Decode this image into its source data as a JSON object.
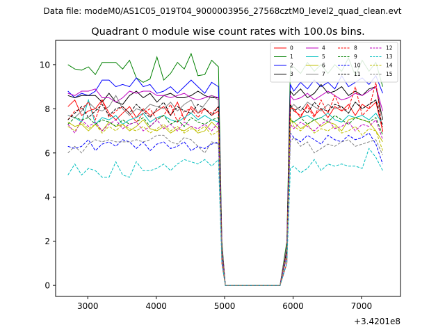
{
  "chart_data": {
    "type": "line",
    "suptitle": "Data file: modeM0/AS1C05_019T04_9000003956_27568cztM0_level2_quad_clean.evt",
    "title": "Quadrant 0 module wise count rates with 100.0s bins.",
    "xlabel": "",
    "ylabel": "",
    "x_offset_label": "+3.4201e8",
    "xlim": [
      2530,
      7570
    ],
    "ylim": [
      -0.5,
      11.1
    ],
    "xticks": [
      3000,
      4000,
      5000,
      6000,
      7000
    ],
    "yticks": [
      0,
      2,
      4,
      6,
      8,
      10
    ],
    "grid": false,
    "legend_position": "top-right",
    "legend_columns": 4,
    "x": [
      2710,
      2810,
      2910,
      3010,
      3110,
      3210,
      3310,
      3410,
      3510,
      3610,
      3710,
      3810,
      3910,
      4010,
      4110,
      4210,
      4310,
      4410,
      4510,
      4610,
      4710,
      4810,
      4910,
      4960,
      5010,
      5110,
      5210,
      5310,
      5410,
      5510,
      5610,
      5710,
      5810,
      5910,
      5960,
      6010,
      6110,
      6210,
      6310,
      6410,
      6510,
      6610,
      6710,
      6810,
      6910,
      7010,
      7110,
      7210,
      7310
    ],
    "series": [
      {
        "name": "0",
        "color": "#ff0000",
        "dash": "solid",
        "values": [
          8.1,
          8.4,
          7.7,
          7.9,
          8.0,
          8.4,
          7.8,
          7.5,
          7.8,
          8.1,
          7.6,
          8.0,
          7.7,
          7.9,
          8.1,
          7.7,
          8.3,
          7.5,
          8.1,
          7.8,
          8.0,
          7.7,
          7.9,
          1.0,
          0.0,
          0,
          0,
          0,
          0,
          0,
          0,
          0,
          0,
          1.0,
          8.0,
          8.0,
          7.6,
          8.2,
          7.7,
          8.0,
          7.6,
          8.1,
          7.9,
          8.2,
          7.7,
          8.2,
          8.0,
          8.3,
          7.0
        ]
      },
      {
        "name": "1",
        "color": "#008000",
        "dash": "solid",
        "values": [
          10.0,
          9.8,
          9.75,
          9.9,
          9.55,
          10.1,
          10.1,
          10.1,
          9.8,
          10.2,
          9.4,
          9.2,
          9.35,
          10.35,
          9.3,
          9.6,
          10.1,
          9.8,
          10.5,
          9.5,
          9.55,
          10.2,
          9.9,
          2.0,
          0.0,
          0,
          0,
          0,
          0,
          0,
          0,
          0,
          0,
          2.0,
          9.9,
          9.9,
          9.6,
          10.1,
          9.7,
          10.0,
          9.6,
          10.0,
          9.7,
          10.3,
          9.5,
          10.2,
          9.7,
          10.1,
          9.0
        ]
      },
      {
        "name": "2",
        "color": "#0000ff",
        "dash": "solid",
        "values": [
          8.8,
          8.5,
          8.7,
          8.6,
          8.8,
          9.3,
          9.3,
          9.0,
          9.1,
          9.0,
          9.4,
          9.0,
          9.1,
          8.7,
          8.8,
          9.0,
          8.7,
          9.0,
          9.3,
          9.0,
          8.7,
          9.2,
          9.0,
          1.8,
          0.0,
          0,
          0,
          0,
          0,
          0,
          0,
          0,
          0,
          1.8,
          9.1,
          8.8,
          9.2,
          8.9,
          9.3,
          9.0,
          9.2,
          8.9,
          9.5,
          9.0,
          9.2,
          9.4,
          9.1,
          9.5,
          8.7
        ]
      },
      {
        "name": "3",
        "color": "#000000",
        "dash": "solid",
        "values": [
          8.6,
          8.5,
          8.6,
          8.6,
          8.6,
          8.3,
          8.7,
          8.3,
          8.2,
          8.6,
          8.8,
          8.5,
          8.7,
          8.3,
          8.6,
          8.7,
          8.5,
          8.5,
          8.6,
          8.8,
          8.6,
          8.5,
          8.5,
          1.8,
          0.0,
          0,
          0,
          0,
          0,
          0,
          0,
          0,
          0,
          1.8,
          8.8,
          8.6,
          8.9,
          8.5,
          8.7,
          9.1,
          8.7,
          8.8,
          9.0,
          8.6,
          8.8,
          8.6,
          8.9,
          9.0,
          7.5
        ]
      },
      {
        "name": "4",
        "color": "#bf00bf",
        "dash": "solid",
        "values": [
          8.7,
          8.6,
          8.8,
          8.8,
          8.9,
          8.5,
          8.5,
          8.3,
          8.5,
          8.8,
          8.7,
          8.8,
          8.8,
          8.6,
          8.6,
          8.5,
          8.6,
          8.7,
          8.5,
          8.4,
          8.5,
          8.6,
          8.5,
          1.8,
          0.0,
          0,
          0,
          0,
          0,
          0,
          0,
          0,
          0,
          1.8,
          8.6,
          8.4,
          8.5,
          8.7,
          8.4,
          8.6,
          8.8,
          8.6,
          8.4,
          8.5,
          8.7,
          8.6,
          8.8,
          9.0,
          7.9
        ]
      },
      {
        "name": "5",
        "color": "#00bfbf",
        "dash": "solid",
        "values": [
          7.7,
          7.6,
          7.4,
          8.4,
          7.3,
          7.6,
          7.5,
          7.7,
          7.3,
          7.5,
          7.6,
          7.8,
          7.4,
          7.6,
          7.7,
          7.5,
          7.4,
          7.6,
          7.8,
          7.5,
          7.7,
          7.5,
          7.4,
          1.5,
          0.0,
          0,
          0,
          0,
          0,
          0,
          0,
          0,
          0,
          1.5,
          7.5,
          7.4,
          7.6,
          7.7,
          7.5,
          7.6,
          7.8,
          7.5,
          7.4,
          7.7,
          7.6,
          7.7,
          7.5,
          7.8,
          7.3
        ]
      },
      {
        "name": "6",
        "color": "#bfbf00",
        "dash": "solid",
        "values": [
          7.4,
          7.2,
          7.3,
          7.0,
          7.3,
          7.0,
          7.4,
          7.2,
          7.3,
          7.0,
          7.2,
          7.5,
          7.1,
          7.0,
          7.2,
          6.9,
          7.1,
          7.0,
          7.2,
          6.9,
          7.0,
          7.4,
          7.1,
          1.5,
          0.0,
          0,
          0,
          0,
          0,
          0,
          0,
          0,
          0,
          1.5,
          7.5,
          7.4,
          7.1,
          7.3,
          7.5,
          7.2,
          7.4,
          7.3,
          7.0,
          7.5,
          7.6,
          7.5,
          7.4,
          7.0,
          6.5
        ]
      },
      {
        "name": "7",
        "color": "#7f7f7f",
        "dash": "solid",
        "values": [
          7.7,
          7.6,
          7.9,
          8.3,
          8.0,
          7.9,
          8.1,
          8.6,
          8.0,
          7.7,
          8.0,
          7.9,
          8.2,
          8.1,
          8.0,
          8.3,
          7.9,
          8.2,
          8.4,
          7.8,
          8.2,
          8.6,
          8.4,
          1.8,
          0.0,
          0,
          0,
          0,
          0,
          0,
          0,
          0,
          0,
          1.8,
          8.0,
          8.2,
          7.9,
          8.3,
          8.1,
          7.9,
          8.2,
          8.0,
          8.1,
          7.8,
          8.3,
          8.0,
          8.2,
          8.4,
          7.6
        ]
      },
      {
        "name": "8",
        "color": "#ff0000",
        "dash": "dashed",
        "values": [
          7.5,
          7.9,
          8.0,
          8.3,
          7.5,
          8.4,
          7.6,
          7.9,
          8.1,
          7.8,
          7.4,
          7.8,
          8.0,
          7.5,
          7.7,
          8.2,
          7.4,
          7.9,
          8.0,
          7.6,
          8.0,
          7.8,
          8.1,
          1.6,
          0.0,
          0,
          0,
          0,
          0,
          0,
          0,
          0,
          0,
          1.6,
          8.2,
          7.9,
          7.7,
          8.1,
          7.6,
          8.4,
          7.8,
          8.6,
          7.9,
          8.0,
          9.0,
          7.7,
          8.0,
          9.2,
          6.9
        ]
      },
      {
        "name": "9",
        "color": "#008000",
        "dash": "dashed",
        "values": [
          7.3,
          7.6,
          7.5,
          7.6,
          7.3,
          7.5,
          7.4,
          7.2,
          7.5,
          7.3,
          7.4,
          7.6,
          7.2,
          7.5,
          7.7,
          7.3,
          7.5,
          7.2,
          7.6,
          7.4,
          7.3,
          7.5,
          7.6,
          1.5,
          0.0,
          0,
          0,
          0,
          0,
          0,
          0,
          0,
          0,
          1.5,
          7.5,
          7.4,
          7.6,
          7.3,
          7.5,
          7.6,
          7.4,
          7.7,
          7.5,
          7.3,
          7.6,
          7.5,
          7.4,
          7.6,
          6.8
        ]
      },
      {
        "name": "10",
        "color": "#0000ff",
        "dash": "dashed",
        "values": [
          6.3,
          6.2,
          6.3,
          6.6,
          6.1,
          6.4,
          6.5,
          6.3,
          6.6,
          6.5,
          6.2,
          6.5,
          6.1,
          6.4,
          6.5,
          6.2,
          6.3,
          6.5,
          6.1,
          6.3,
          6.2,
          6.4,
          6.5,
          1.3,
          0.0,
          0,
          0,
          0,
          0,
          0,
          0,
          0,
          0,
          1.3,
          6.9,
          6.7,
          6.5,
          6.8,
          6.6,
          6.4,
          6.8,
          6.6,
          6.5,
          6.8,
          6.6,
          6.7,
          6.9,
          6.4,
          5.5
        ]
      },
      {
        "name": "11",
        "color": "#000000",
        "dash": "dashed",
        "values": [
          7.5,
          7.8,
          8.1,
          7.6,
          7.9,
          8.2,
          7.7,
          8.0,
          8.1,
          7.8,
          8.2,
          7.9,
          7.6,
          8.0,
          8.3,
          7.7,
          8.1,
          7.9,
          7.8,
          8.2,
          8.0,
          7.7,
          8.1,
          1.6,
          0.0,
          0,
          0,
          0,
          0,
          0,
          0,
          0,
          0,
          1.6,
          8.2,
          7.9,
          8.1,
          7.8,
          8.3,
          8.0,
          7.9,
          8.2,
          8.1,
          7.8,
          8.3,
          8.0,
          8.2,
          8.4,
          7.2
        ]
      },
      {
        "name": "12",
        "color": "#bf00bf",
        "dash": "dashed",
        "values": [
          7.3,
          6.9,
          7.5,
          7.2,
          7.4,
          7.0,
          7.3,
          7.5,
          7.1,
          7.3,
          7.4,
          7.0,
          7.2,
          7.5,
          7.1,
          7.3,
          7.0,
          7.4,
          7.2,
          7.1,
          7.3,
          7.0,
          7.4,
          1.5,
          0.0,
          0,
          0,
          0,
          0,
          0,
          0,
          0,
          0,
          1.5,
          7.3,
          7.1,
          7.4,
          7.2,
          7.0,
          7.3,
          7.5,
          7.1,
          7.2,
          7.4,
          7.0,
          7.3,
          7.2,
          7.5,
          6.6
        ]
      },
      {
        "name": "13",
        "color": "#00bfbf",
        "dash": "dashed",
        "values": [
          5.0,
          5.5,
          5.0,
          5.3,
          5.2,
          4.9,
          4.9,
          5.6,
          5.0,
          4.9,
          5.6,
          5.2,
          5.2,
          5.3,
          5.5,
          5.2,
          5.5,
          5.7,
          5.6,
          5.5,
          5.7,
          5.4,
          5.7,
          1.0,
          0.0,
          0,
          0,
          0,
          0,
          0,
          0,
          0,
          0,
          1.0,
          5.3,
          5.4,
          5.1,
          5.3,
          5.7,
          5.2,
          5.5,
          5.4,
          5.5,
          5.4,
          5.4,
          5.3,
          6.2,
          5.8,
          5.2
        ]
      },
      {
        "name": "14",
        "color": "#bfbf00",
        "dash": "dashed",
        "values": [
          7.2,
          7.0,
          7.4,
          7.1,
          7.3,
          6.9,
          7.2,
          7.0,
          7.3,
          7.1,
          7.0,
          7.2,
          6.9,
          7.1,
          7.3,
          7.0,
          7.2,
          6.9,
          7.1,
          7.0,
          7.2,
          6.8,
          7.0,
          1.4,
          0.0,
          0,
          0,
          0,
          0,
          0,
          0,
          0,
          0,
          1.4,
          7.6,
          7.2,
          7.0,
          7.3,
          6.9,
          7.1,
          7.0,
          7.2,
          6.9,
          7.0,
          7.2,
          6.8,
          7.1,
          7.0,
          6.1
        ]
      },
      {
        "name": "15",
        "color": "#7f7f7f",
        "dash": "dashed",
        "values": [
          6.0,
          6.3,
          6.0,
          6.4,
          6.6,
          6.5,
          6.6,
          6.5,
          6.5,
          6.5,
          6.6,
          6.5,
          6.6,
          6.8,
          6.8,
          6.5,
          6.4,
          6.7,
          6.6,
          6.3,
          6.0,
          6.5,
          6.4,
          1.3,
          0.0,
          0,
          0,
          0,
          0,
          0,
          0,
          0,
          0,
          1.3,
          6.5,
          6.7,
          6.3,
          6.5,
          6.0,
          6.2,
          6.4,
          6.3,
          6.5,
          6.6,
          6.3,
          6.4,
          6.5,
          6.6,
          5.9
        ]
      }
    ]
  }
}
